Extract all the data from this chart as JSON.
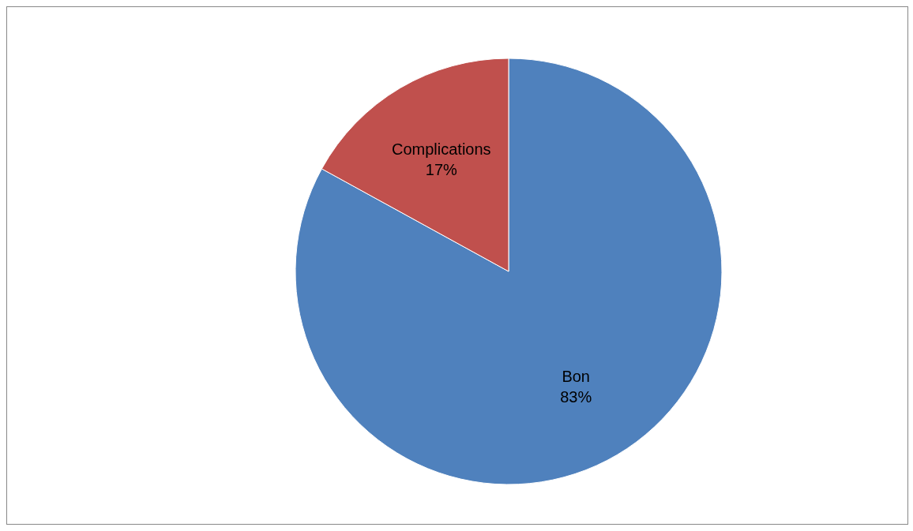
{
  "chart_data": {
    "type": "pie",
    "categories": [
      "Bon",
      "Complications"
    ],
    "values": [
      83,
      17
    ],
    "colors": [
      "#4f81bd",
      "#c0504d"
    ],
    "value_labels": [
      "83%",
      "17%"
    ]
  }
}
